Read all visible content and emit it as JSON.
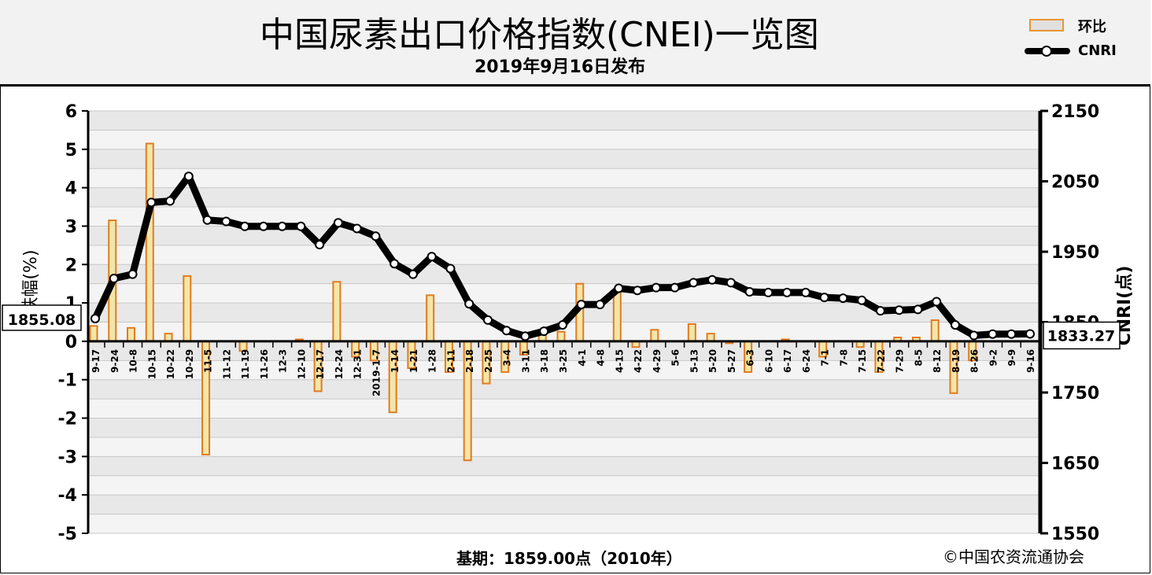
{
  "header": {
    "title": "中国尿素出口价格指数(CNEI)一览图",
    "subtitle": "2019年9月16日发布"
  },
  "legend": {
    "bar_label": "环比",
    "line_label": "CNRI"
  },
  "footer": {
    "base": "基期：1859.00点（2010年）",
    "copyright": "©中国农资流通协会"
  },
  "chart_data": {
    "type": "bar+line",
    "ylabel_left": "涨跌幅(%)",
    "ylabel_right": "CNRI(点)",
    "ylim_left": [
      -5,
      6
    ],
    "ylim_right": [
      1550,
      2150
    ],
    "yticks_left": [
      "6",
      "5",
      "4",
      "3",
      "2",
      "1",
      "0",
      "-1",
      "-2",
      "-3",
      "-4",
      "-5"
    ],
    "yticks_right": [
      "2150",
      "2050",
      "1950",
      "1850",
      "1750",
      "1650",
      "1550"
    ],
    "grid": true,
    "categories": [
      "9-17",
      "9-24",
      "10-8",
      "10-15",
      "10-22",
      "10-29",
      "11-5",
      "11-12",
      "11-19",
      "11-26",
      "12-3",
      "12-10",
      "12-17",
      "12-24",
      "12-31",
      "2019-1-7",
      "1-14",
      "1-21",
      "1-28",
      "2-11",
      "2-18",
      "2-25",
      "3-4",
      "3-11",
      "3-18",
      "3-25",
      "4-1",
      "4-8",
      "4-15",
      "4-22",
      "4-29",
      "5-6",
      "5-13",
      "5-20",
      "5-27",
      "6-3",
      "6-10",
      "6-17",
      "6-24",
      "7-1",
      "7-8",
      "7-15",
      "7-22",
      "7-29",
      "8-5",
      "8-12",
      "8-19",
      "8-26",
      "9-2",
      "9-9",
      "9-16"
    ],
    "series": [
      {
        "name": "环比",
        "kind": "bar",
        "values": [
          0.4,
          3.15,
          0.35,
          5.15,
          0.2,
          1.7,
          -2.95,
          0.0,
          -0.25,
          0.0,
          0.0,
          0.05,
          -1.3,
          1.55,
          -0.4,
          -0.5,
          -1.85,
          -0.7,
          1.2,
          -0.8,
          -3.1,
          -1.1,
          -0.8,
          -0.35,
          0.3,
          0.25,
          1.5,
          0.0,
          1.3,
          -0.15,
          0.3,
          0.0,
          0.45,
          0.2,
          -0.05,
          -0.8,
          0.0,
          0.05,
          0.0,
          -0.4,
          0.0,
          -0.15,
          -0.8,
          0.1,
          0.1,
          0.55,
          -1.35,
          -0.5,
          0.0,
          0.0,
          0.0
        ]
      },
      {
        "name": "CNRI",
        "kind": "line",
        "values": [
          1855.08,
          1912,
          1918,
          2020,
          2022,
          2057,
          1995,
          1993,
          1986,
          1986,
          1986,
          1986,
          1960,
          1991,
          1983,
          1972,
          1933,
          1918,
          1943,
          1926,
          1876,
          1853,
          1838,
          1830,
          1837,
          1846,
          1875,
          1875,
          1898,
          1895,
          1899,
          1899,
          1906,
          1910,
          1906,
          1893,
          1892,
          1892,
          1892,
          1885,
          1884,
          1881,
          1866,
          1867,
          1868,
          1879,
          1846,
          1831,
          1833,
          1833,
          1833.27
        ]
      }
    ],
    "annotations": {
      "start_value": "1855.08",
      "end_value": "1833.27"
    }
  }
}
